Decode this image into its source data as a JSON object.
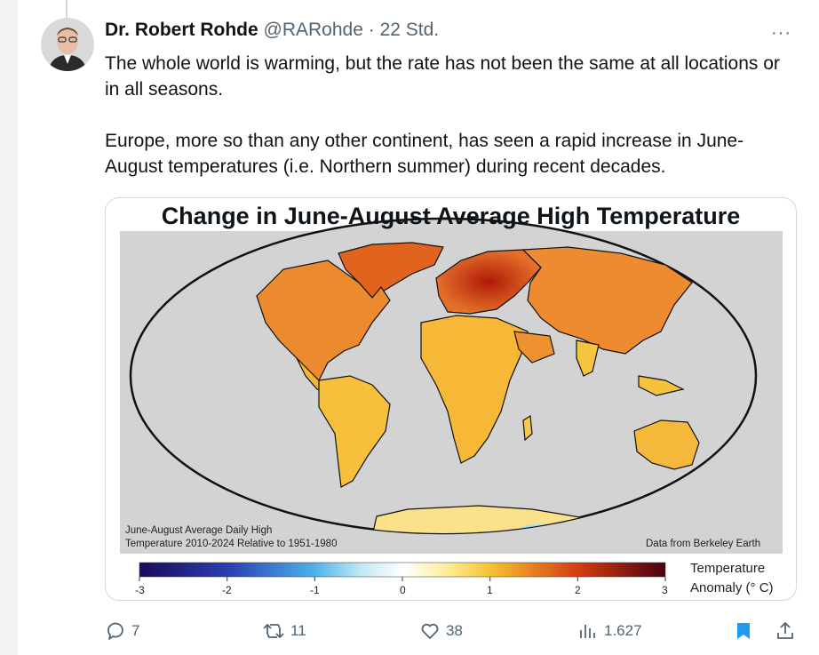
{
  "tweet": {
    "author_name": "Dr. Robert Rohde",
    "handle": "@RARohde",
    "separator": "·",
    "time": "22 Std.",
    "more": "···",
    "paragraph1": "The whole world is warming, but the rate has not been the same at all locations or in all seasons.",
    "paragraph2": "Europe, more so than any other continent, has seen a rapid increase in June-August temperatures (i.e. Northern summer) during recent decades."
  },
  "map": {
    "title": "Change in June-August Average High Temperature",
    "caption_line1": "June-August Average Daily High",
    "caption_line2": "Temperature 2010-2024 Relative to 1951-1980",
    "source": "Data from Berkeley Earth",
    "legend_title_line1": "Temperature",
    "legend_title_line2": "Anomaly (° C)",
    "scale_ticks": [
      "-3",
      "-2",
      "-1",
      "0",
      "1",
      "2",
      "3"
    ],
    "colors": {
      "cold": "#1a0a5a",
      "cool": "#2f8fe0",
      "neutral": "#ffffff",
      "warm": "#f5c030",
      "hot": "#d73e12",
      "extreme": "#4a0010",
      "ocean": "#d3d3d3"
    }
  },
  "actions": {
    "replies": "7",
    "reposts": "11",
    "likes": "38",
    "views": "1.627",
    "accent": "#1d9bf0"
  }
}
